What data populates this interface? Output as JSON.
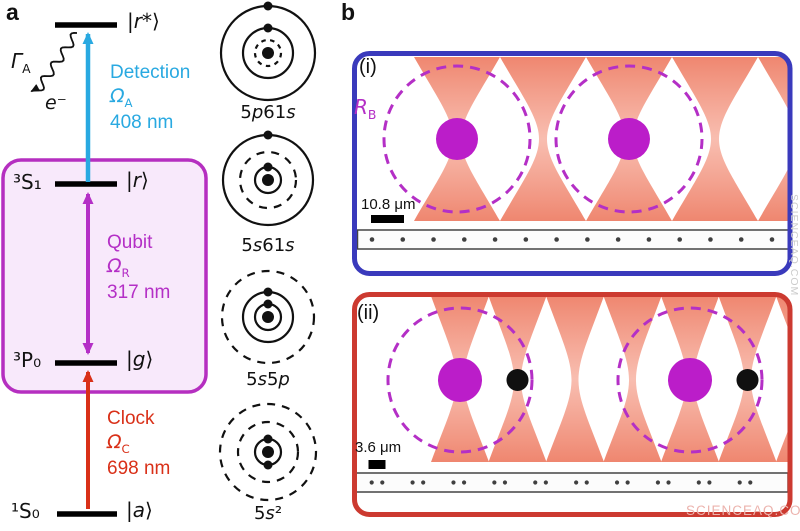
{
  "figure": {
    "panel_a_label": "a",
    "panel_b_label": "b"
  },
  "colors": {
    "detection_blue": "#29a9e1",
    "qubit_magenta": "#b42fc6",
    "clock_red": "#d93018",
    "box_border": "#b52fc0",
    "box_fill": "#f8e9fb",
    "panel_i_border": "#3a3abc",
    "panel_ii_border": "#cc3a30",
    "beam_strong": "#ee8068",
    "beam_soft": "#f7b2a2",
    "atom_magenta": "#bb1dc9",
    "atom_black": "#101010",
    "ink": "#111111",
    "strip_dot": "#404040",
    "watermark_pink": "#ecb3ad",
    "watermark_gray": "#cccccc"
  },
  "panel_a": {
    "levels": [
      {
        "id": "rstar",
        "term": "",
        "ket": "|r*⟩"
      },
      {
        "id": "r",
        "term": "³S₁",
        "ket": "|r⟩"
      },
      {
        "id": "g",
        "term": "³P₀",
        "ket": "|g⟩"
      },
      {
        "id": "a",
        "term": "¹S₀",
        "ket": "|a⟩"
      }
    ],
    "decay": {
      "gamma": "Γ",
      "gamma_sub": "A",
      "electron": "e⁻"
    },
    "transitions": {
      "detection": {
        "name": "Detection",
        "rabi": "Ω",
        "rabi_sub": "A",
        "wavelength": "408 nm"
      },
      "qubit": {
        "name": "Qubit",
        "rabi": "Ω",
        "rabi_sub": "R",
        "wavelength": "317 nm"
      },
      "clock": {
        "name": "Clock",
        "rabi": "Ω",
        "rabi_sub": "C",
        "wavelength": "698 nm"
      }
    },
    "configurations": [
      {
        "label": "5p61s",
        "rings": [
          {
            "r": 47,
            "style": "solid",
            "electrons": [
              -90
            ]
          },
          {
            "r": 25,
            "style": "solid",
            "electrons": [
              -90
            ]
          },
          {
            "r": 13,
            "style": "dashed",
            "electrons": []
          }
        ]
      },
      {
        "label": "5s61s",
        "rings": [
          {
            "r": 45,
            "style": "solid",
            "electrons": [
              -90
            ]
          },
          {
            "r": 28,
            "style": "dashed",
            "electrons": []
          },
          {
            "r": 13,
            "style": "solid",
            "electrons": [
              -90
            ]
          }
        ]
      },
      {
        "label": "5s5p",
        "rings": [
          {
            "r": 46,
            "style": "dashed",
            "electrons": []
          },
          {
            "r": 25,
            "style": "solid",
            "electrons": [
              -90
            ]
          },
          {
            "r": 13,
            "style": "solid",
            "electrons": [
              -90
            ]
          }
        ]
      },
      {
        "label": "5s²",
        "rings": [
          {
            "r": 48,
            "style": "dashed",
            "electrons": []
          },
          {
            "r": 30,
            "style": "dashed",
            "electrons": []
          },
          {
            "r": 13,
            "style": "solid",
            "electrons": [
              -90,
              90
            ]
          }
        ]
      }
    ]
  },
  "panel_b": {
    "blockade_radius": {
      "base": "R",
      "sub": "B"
    },
    "sub_i": {
      "label": "(i)",
      "scale_bar": "10.8 μm",
      "tweezers": 5,
      "magenta_atoms": [
        0,
        2
      ],
      "black_atoms": [],
      "array_dots": 14
    },
    "sub_ii": {
      "label": "(ii)",
      "scale_bar": "3.6 μm",
      "tweezers": 7,
      "magenta_atoms": [
        0,
        4
      ],
      "black_atoms": [
        1,
        5
      ],
      "array_dot_pairs": 10
    }
  },
  "watermarks": {
    "bottom": "SCIENCEAQ.COM",
    "side": "SCIENCEAQ.COM"
  }
}
